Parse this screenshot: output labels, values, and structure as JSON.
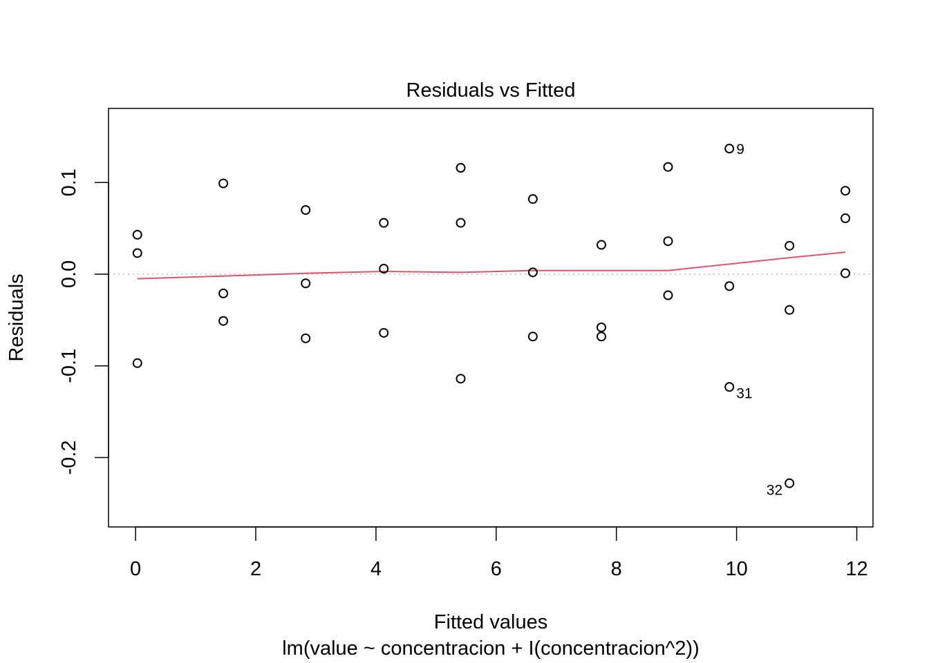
{
  "chart_data": {
    "type": "scatter",
    "title": "Residuals vs Fitted",
    "xlabel": "Fitted values",
    "subtitle": "lm(value ~ concentracion + I(concentracion^2))",
    "ylabel": "Residuals",
    "xlim": [
      -0.45,
      12.27
    ],
    "ylim": [
      -0.2757,
      0.1808
    ],
    "x_ticks": [
      0,
      2,
      4,
      6,
      8,
      10,
      12
    ],
    "x_tick_labels": [
      "0",
      "2",
      "4",
      "6",
      "8",
      "10",
      "12"
    ],
    "y_ticks": [
      -0.2,
      -0.1,
      0.0,
      0.1
    ],
    "y_tick_labels": [
      "-0.2",
      "-0.1",
      "0.0",
      "0.1"
    ],
    "reference_line": 0,
    "points": [
      {
        "x": 0.03,
        "y": 0.043
      },
      {
        "x": 0.03,
        "y": 0.023
      },
      {
        "x": 0.03,
        "y": -0.097
      },
      {
        "x": 1.46,
        "y": 0.099
      },
      {
        "x": 1.46,
        "y": -0.021
      },
      {
        "x": 1.46,
        "y": -0.051
      },
      {
        "x": 2.83,
        "y": 0.07
      },
      {
        "x": 2.83,
        "y": -0.01
      },
      {
        "x": 2.83,
        "y": -0.07
      },
      {
        "x": 4.13,
        "y": 0.056
      },
      {
        "x": 4.13,
        "y": 0.006
      },
      {
        "x": 4.13,
        "y": -0.064
      },
      {
        "x": 5.41,
        "y": 0.116
      },
      {
        "x": 5.41,
        "y": 0.056
      },
      {
        "x": 5.41,
        "y": -0.114
      },
      {
        "x": 6.61,
        "y": 0.082
      },
      {
        "x": 6.61,
        "y": 0.002
      },
      {
        "x": 6.61,
        "y": -0.068
      },
      {
        "x": 7.75,
        "y": 0.032
      },
      {
        "x": 7.75,
        "y": -0.058
      },
      {
        "x": 7.75,
        "y": -0.068
      },
      {
        "x": 8.86,
        "y": 0.117
      },
      {
        "x": 8.86,
        "y": 0.036
      },
      {
        "x": 8.86,
        "y": -0.023
      },
      {
        "x": 9.88,
        "y": 0.137,
        "label": "9"
      },
      {
        "x": 9.88,
        "y": -0.013
      },
      {
        "x": 9.88,
        "y": -0.123,
        "label": "31"
      },
      {
        "x": 10.88,
        "y": 0.031
      },
      {
        "x": 10.88,
        "y": -0.039
      },
      {
        "x": 10.88,
        "y": -0.228,
        "label": "32"
      },
      {
        "x": 11.81,
        "y": 0.091
      },
      {
        "x": 11.81,
        "y": 0.061
      },
      {
        "x": 11.81,
        "y": 0.001
      }
    ],
    "smooth_line": {
      "color": "#DF536B",
      "x": [
        0.03,
        1.46,
        2.83,
        4.13,
        5.41,
        6.61,
        7.75,
        8.86,
        9.88,
        10.88,
        11.81
      ],
      "y": [
        -0.005,
        -0.002,
        0.001,
        0.003,
        0.002,
        0.004,
        0.004,
        0.004,
        0.011,
        0.018,
        0.024
      ]
    },
    "colors": {
      "points": "#000000",
      "reference_line": "#BEBEBE",
      "axes": "#000000"
    }
  }
}
